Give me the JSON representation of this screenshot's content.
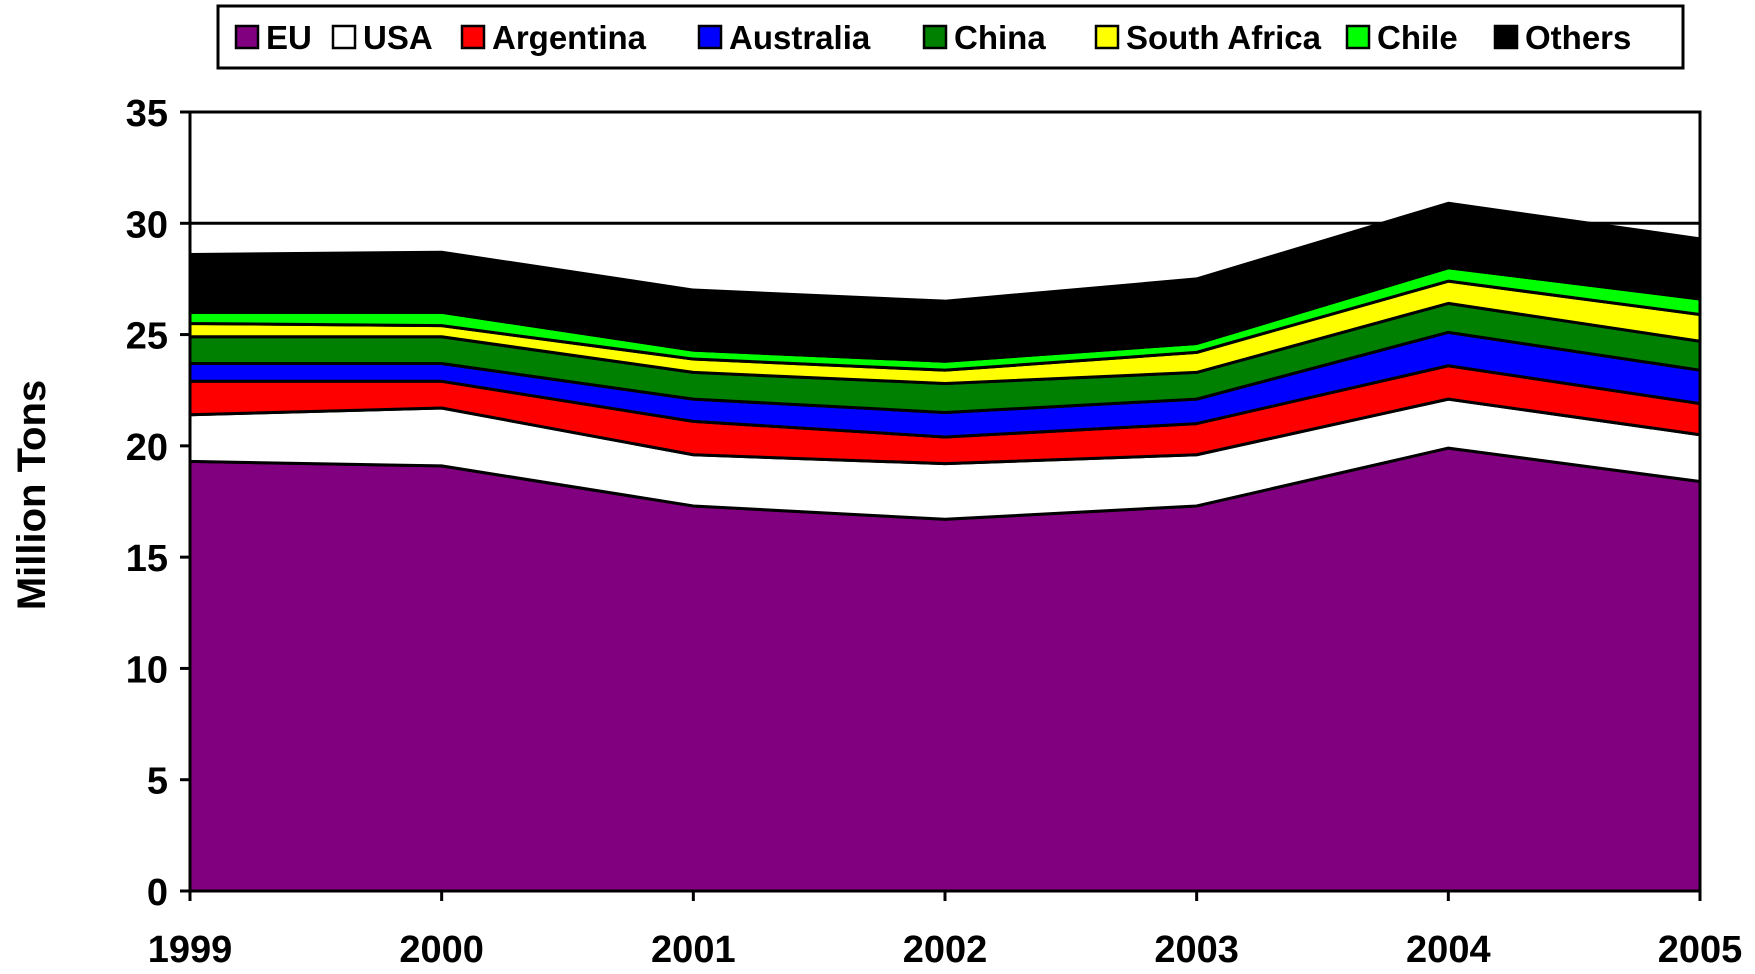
{
  "chart_data": {
    "type": "area",
    "stacked": true,
    "title": "",
    "xlabel": "",
    "ylabel": "Million Tons",
    "ylim": [
      0,
      35
    ],
    "yticks": [
      "0",
      "5",
      "10",
      "15",
      "20",
      "25",
      "30",
      "35"
    ],
    "categories": [
      "1999",
      "2000",
      "2001",
      "2002",
      "2003",
      "2004",
      "2005"
    ],
    "gridlines": [
      30
    ],
    "legend_position": "top",
    "series": [
      {
        "name": "EU",
        "color": "#800080",
        "values": [
          19.3,
          19.1,
          17.3,
          16.7,
          17.3,
          19.9,
          18.4
        ]
      },
      {
        "name": "USA",
        "color": "#FFFFFF",
        "values": [
          2.1,
          2.6,
          2.3,
          2.5,
          2.3,
          2.2,
          2.1
        ]
      },
      {
        "name": "Argentina",
        "color": "#FF0000",
        "values": [
          1.5,
          1.2,
          1.5,
          1.2,
          1.4,
          1.5,
          1.4
        ]
      },
      {
        "name": "Australia",
        "color": "#0000FF",
        "values": [
          0.8,
          0.8,
          1.0,
          1.1,
          1.1,
          1.5,
          1.5
        ]
      },
      {
        "name": "China",
        "color": "#008000",
        "values": [
          1.2,
          1.2,
          1.2,
          1.3,
          1.2,
          1.3,
          1.3
        ]
      },
      {
        "name": "South Africa",
        "color": "#FFFF00",
        "values": [
          0.6,
          0.5,
          0.6,
          0.6,
          0.9,
          1.0,
          1.2
        ]
      },
      {
        "name": "Chile",
        "color": "#00FF00",
        "values": [
          0.5,
          0.6,
          0.4,
          0.4,
          0.4,
          0.6,
          0.7
        ]
      },
      {
        "name": "Others",
        "color": "#000000",
        "values": [
          2.6,
          2.7,
          2.7,
          2.7,
          2.9,
          2.9,
          2.7
        ]
      }
    ]
  }
}
